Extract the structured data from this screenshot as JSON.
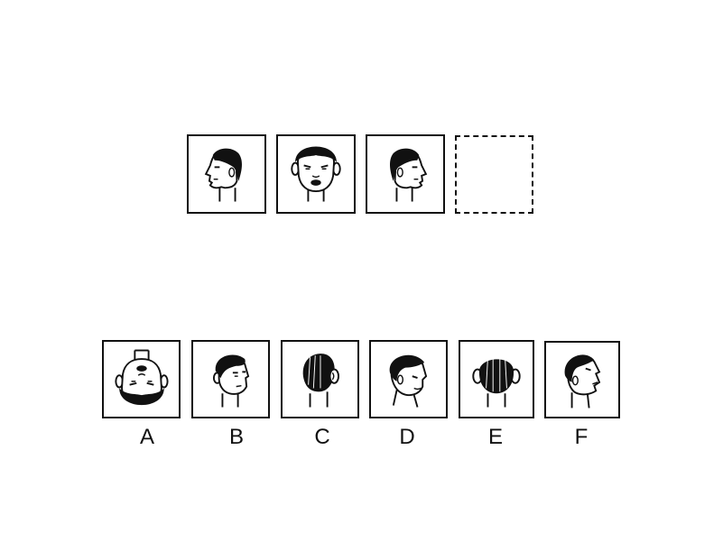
{
  "sequence": [
    {
      "icon": "head-profile-left-icon"
    },
    {
      "icon": "head-front-icon"
    },
    {
      "icon": "head-profile-right-icon"
    },
    {
      "icon": "empty-answer-slot"
    }
  ],
  "options": [
    {
      "label": "A",
      "icon": "head-upside-down-icon"
    },
    {
      "label": "B",
      "icon": "head-three-quarter-right-icon"
    },
    {
      "label": "C",
      "icon": "head-back-right-icon"
    },
    {
      "label": "D",
      "icon": "head-tilted-down-right-icon"
    },
    {
      "label": "E",
      "icon": "head-back-icon"
    },
    {
      "label": "F",
      "icon": "head-tilted-up-right-icon"
    }
  ]
}
